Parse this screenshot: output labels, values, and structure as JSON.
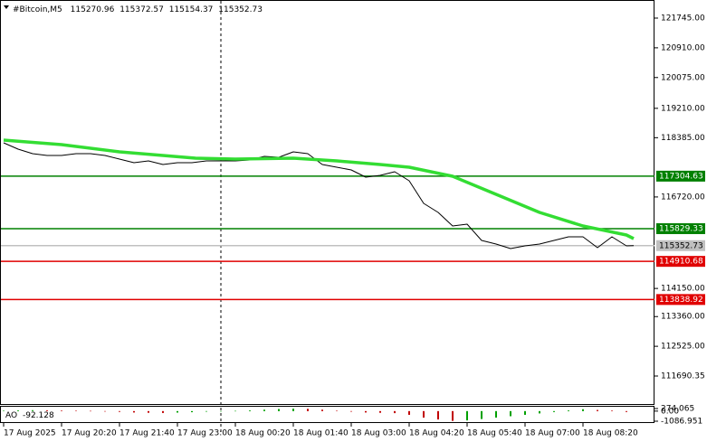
{
  "chart_data": [
    {
      "type": "line",
      "title": "#Bitcoin,M5",
      "ohlc": [
        115270.96,
        115372.57,
        115154.37,
        115352.73
      ],
      "xlim": [
        -1,
        179.75
      ],
      "xticks": [
        {
          "value": 0,
          "label": "17 Aug 2025"
        },
        {
          "value": 16,
          "label": "17 Aug 20:20"
        },
        {
          "value": 32,
          "label": "17 Aug 21:40"
        },
        {
          "value": 48,
          "label": "17 Aug 23:00"
        },
        {
          "value": 64,
          "label": "18 Aug 00:20"
        },
        {
          "value": 80,
          "label": "18 Aug 01:40"
        },
        {
          "value": 96,
          "label": "18 Aug 03:00"
        },
        {
          "value": 112,
          "label": "18 Aug 04:20"
        },
        {
          "value": 128,
          "label": "18 Aug 05:40"
        },
        {
          "value": 144,
          "label": "18 Aug 07:00"
        },
        {
          "value": 160,
          "label": "18 Aug 08:20"
        }
      ],
      "ylim": [
        110903,
        122253
      ],
      "yticks": [
        {
          "value": 121745,
          "label": "121745.00"
        },
        {
          "value": 120910,
          "label": "120910.00"
        },
        {
          "value": 120075,
          "label": "120075.00"
        },
        {
          "value": 119210,
          "label": "119210.00"
        },
        {
          "value": 118385,
          "label": "118385.00"
        },
        {
          "value": 116720,
          "label": "116720.00"
        },
        {
          "value": 114150,
          "label": "114150.00"
        },
        {
          "value": 113360,
          "label": "113360.00"
        },
        {
          "value": 112525,
          "label": "112525.00"
        },
        111690.35
      ],
      "separators": [
        60
      ],
      "series": [
        {
          "color": "#000000",
          "x": [
            0,
            4,
            8,
            12,
            16,
            20,
            24,
            28,
            32,
            36,
            40,
            44,
            48,
            52,
            56,
            60,
            64,
            68,
            72,
            76,
            80,
            84,
            88,
            92,
            96,
            100,
            104,
            108,
            112,
            116,
            120,
            124,
            128,
            132,
            136,
            140,
            144,
            148,
            152,
            156,
            160,
            164,
            168,
            172,
            174
          ],
          "values": [
            118241,
            118063,
            117936,
            117886,
            117886,
            117936,
            117936,
            117886,
            117784,
            117683,
            117733,
            117632,
            117683,
            117683,
            117733,
            117733,
            117733,
            117759,
            117860,
            117835,
            117987,
            117936,
            117632,
            117556,
            117479,
            117276,
            117327,
            117429,
            117175,
            116540,
            116286,
            115905,
            115956,
            115499,
            115397,
            115271,
            115347,
            115397,
            115499,
            115601,
            115601,
            115296,
            115601,
            115347,
            115352.73
          ]
        },
        {
          "color": "#33dd33",
          "x": [
            0,
            16,
            32,
            53,
            64,
            80,
            92,
            104,
            112,
            124,
            136,
            148,
            160,
            172,
            174
          ],
          "values": [
            118317,
            118190,
            117987,
            117810,
            117784,
            117810,
            117733,
            117632,
            117556,
            117302,
            116794,
            116286,
            115905,
            115651,
            115550
          ]
        }
      ],
      "levels": [
        {
          "value": 117304.63,
          "color": "#008000"
        },
        {
          "value": 115829.33,
          "color": "#008000"
        },
        {
          "value": 115352.73,
          "color": "#c0c0c0"
        },
        {
          "value": 114910.68,
          "color": "#e00000"
        },
        {
          "value": 113838.92,
          "color": "#e00000"
        }
      ]
    },
    {
      "type": "bar",
      "title": "AO",
      "value": -92.128,
      "xlim": [
        -1,
        179.75
      ],
      "ylim": [
        -1086.951,
        274.065
      ],
      "yticks": [
        274.065,
        {
          "value": 0,
          "label": "0.00"
        },
        -1086.951
      ],
      "up_color": "#00a000",
      "down_color": "#c00000",
      "x": [
        0,
        4,
        8,
        12,
        16,
        20,
        24,
        28,
        32,
        36,
        40,
        44,
        48,
        52,
        56,
        60,
        64,
        68,
        72,
        76,
        80,
        84,
        88,
        92,
        96,
        100,
        104,
        108,
        112,
        116,
        120,
        124,
        128,
        132,
        136,
        140,
        144,
        148,
        152,
        156,
        160,
        164,
        168,
        172
      ],
      "values": [
        50,
        80,
        100,
        90,
        60,
        40,
        20,
        -20,
        -80,
        -150,
        -180,
        -200,
        -160,
        -120,
        -60,
        -20,
        20,
        80,
        150,
        220,
        260,
        240,
        150,
        40,
        -60,
        -150,
        -180,
        -220,
        -400,
        -700,
        -900,
        -1050,
        -1000,
        -850,
        -700,
        -550,
        -400,
        -250,
        -100,
        80,
        200,
        120,
        60,
        -92.128
      ]
    }
  ]
}
